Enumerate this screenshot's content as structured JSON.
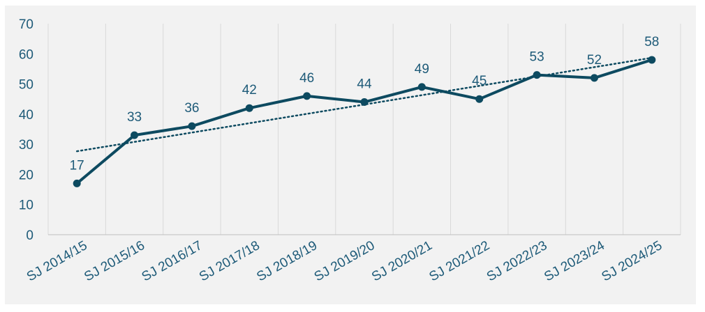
{
  "chart_data": {
    "type": "line",
    "title": "",
    "xlabel": "",
    "ylabel": "",
    "categories": [
      "SJ 2014/15",
      "SJ 2015/16",
      "SJ 2016/17",
      "SJ 2017/18",
      "SJ 2018/19",
      "SJ 2019/20",
      "SJ 2020/21",
      "SJ 2021/22",
      "SJ 2022/23",
      "SJ 2023/24",
      "SJ 2024/25"
    ],
    "series": [
      {
        "values": [
          17,
          33,
          36,
          42,
          46,
          44,
          49,
          45,
          53,
          52,
          58
        ]
      }
    ],
    "trendline": {
      "type": "linear",
      "style": "dotted"
    },
    "ylim": [
      0,
      70
    ],
    "yticks": [
      "0",
      "10",
      "20",
      "30",
      "40",
      "50",
      "60",
      "70"
    ],
    "grid": "vertical",
    "legend": "none",
    "colors": {
      "line": "#0d4a60",
      "trend": "#0d4a60",
      "text": "#1d5a78",
      "grid": "#d9d9d9",
      "background": "#f2f2f2"
    }
  }
}
